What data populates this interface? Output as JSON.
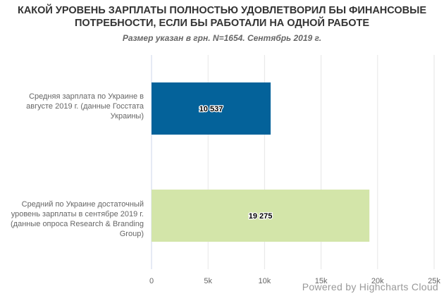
{
  "chart_data": {
    "type": "bar",
    "orientation": "horizontal",
    "title": "КАКОЙ УРОВЕНЬ ЗАРПЛАТЫ ПОЛНОСТЬЮ УДОВЛЕТВОРИЛ БЫ ФИНАНСОВЫЕ ПОТРЕБНОСТИ, ЕСЛИ БЫ РАБОТАЛИ НА ОДНОЙ РАБОТЕ",
    "subtitle": "Размер указан в грн. N=1654. Сентябрь 2019 г.",
    "categories": [
      "Средняя зарплата по Украине в августе 2019 г. (данные Госстата Украины)",
      "Средний по Украине достаточный уровень зарплаты в сентябре 2019 г. (данные опроса Research & Branding Group)"
    ],
    "values": [
      10537,
      19275
    ],
    "value_labels": [
      "10 537",
      "19 275"
    ],
    "colors": [
      "#04629a",
      "#d3e5a9"
    ],
    "xlim": [
      0,
      25000
    ],
    "ticks": [
      0,
      5000,
      10000,
      15000,
      20000,
      25000
    ],
    "tick_labels": [
      "0",
      "5k",
      "10k",
      "15k",
      "20k",
      "25k"
    ],
    "grid": true,
    "legend": false
  },
  "credits": "Powered by Highcharts Cloud"
}
